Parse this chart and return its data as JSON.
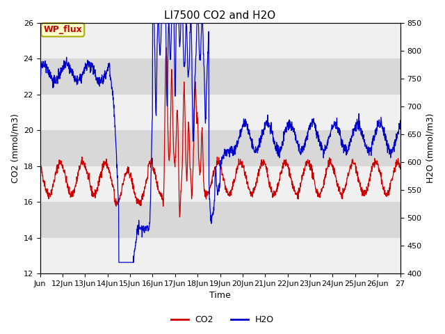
{
  "title": "LI7500 CO2 and H2O",
  "xlabel": "Time",
  "ylabel_left": "CO2 (mmol/m3)",
  "ylabel_right": "H2O (mmol/m3)",
  "annotation": "WP_flux",
  "ylim_left": [
    12,
    26
  ],
  "ylim_right": [
    400,
    850
  ],
  "yticks_left": [
    12,
    14,
    16,
    18,
    20,
    22,
    24,
    26
  ],
  "yticks_right": [
    400,
    450,
    500,
    550,
    600,
    650,
    700,
    750,
    800,
    850
  ],
  "xtick_labels": [
    "Jun",
    "12Jun",
    "13Jun",
    "14Jun",
    "15Jun",
    "16Jun",
    "17Jun",
    "18Jun",
    "19Jun",
    "20Jun",
    "21Jun",
    "22Jun",
    "23Jun",
    "24Jun",
    "25Jun",
    "26Jun",
    "27"
  ],
  "co2_color": "#cc0000",
  "h2o_color": "#0000cc",
  "plot_bg": "#e8e8e8",
  "band_light": "#f0f0f0",
  "band_dark": "#d8d8d8",
  "annotation_bg": "#ffffcc",
  "annotation_border": "#aaaa00",
  "title_fontsize": 11,
  "axis_fontsize": 9,
  "tick_fontsize": 8,
  "legend_fontsize": 9,
  "linewidth": 0.9
}
